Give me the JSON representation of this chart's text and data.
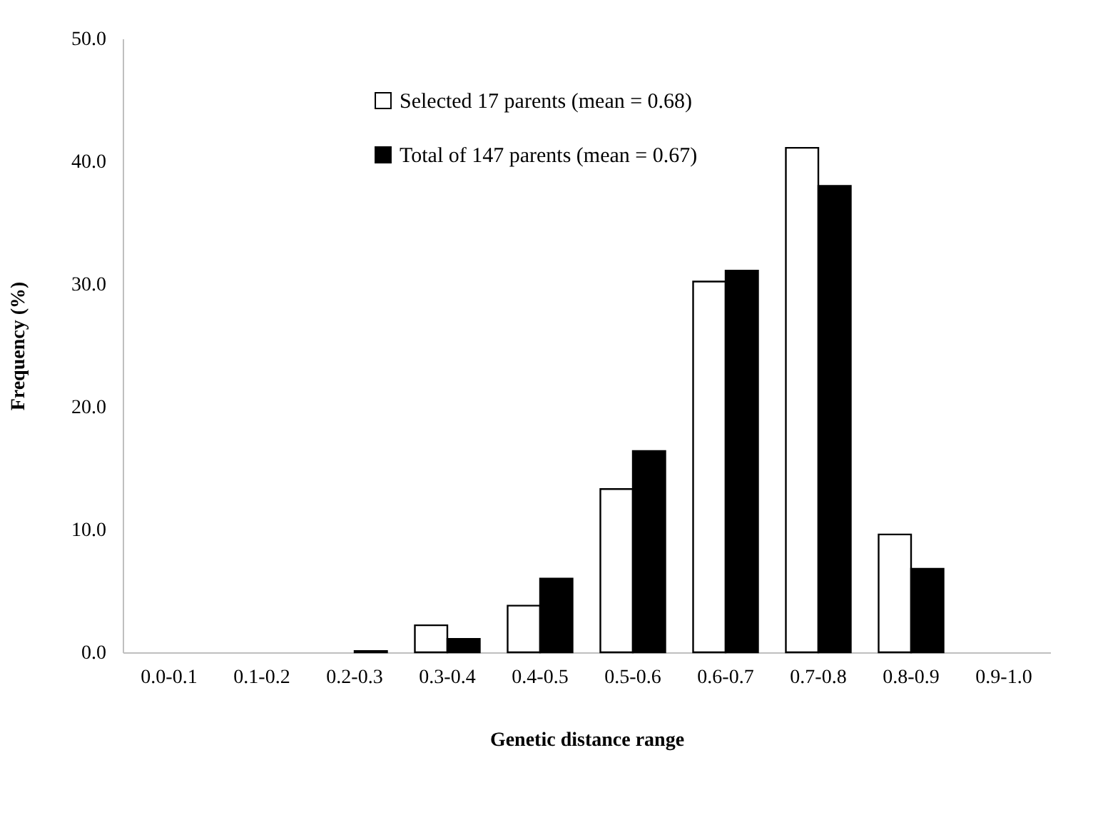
{
  "chart_data": {
    "type": "bar",
    "xlabel": "Genetic distance range",
    "ylabel": "Frequency (%)",
    "categories": [
      "0.0-0.1",
      "0.1-0.2",
      "0.2-0.3",
      "0.3-0.4",
      "0.4-0.5",
      "0.5-0.6",
      "0.6-0.7",
      "0.7-0.8",
      "0.8-0.9",
      "0.9-1.0"
    ],
    "series": [
      {
        "name": "Selected 17 parents (mean = 0.68)",
        "color": "#ffffff",
        "values": [
          0,
          0,
          0,
          2.2,
          3.8,
          13.3,
          30.2,
          41.1,
          9.6,
          0
        ]
      },
      {
        "name": "Total of 147 parents (mean = 0.67)",
        "color": "#000000",
        "values": [
          0,
          0,
          0.1,
          1.1,
          6.0,
          16.4,
          31.1,
          38.0,
          6.8,
          0
        ]
      }
    ],
    "ylim": [
      0,
      50
    ],
    "yticks": [
      {
        "value": 0,
        "label": "0.0"
      },
      {
        "value": 10,
        "label": "10.0"
      },
      {
        "value": 20,
        "label": "20.0"
      },
      {
        "value": 30,
        "label": "30.0"
      },
      {
        "value": 40,
        "label": "40.0"
      },
      {
        "value": 50,
        "label": "50.0"
      }
    ],
    "grid": false,
    "legend": "top left"
  }
}
